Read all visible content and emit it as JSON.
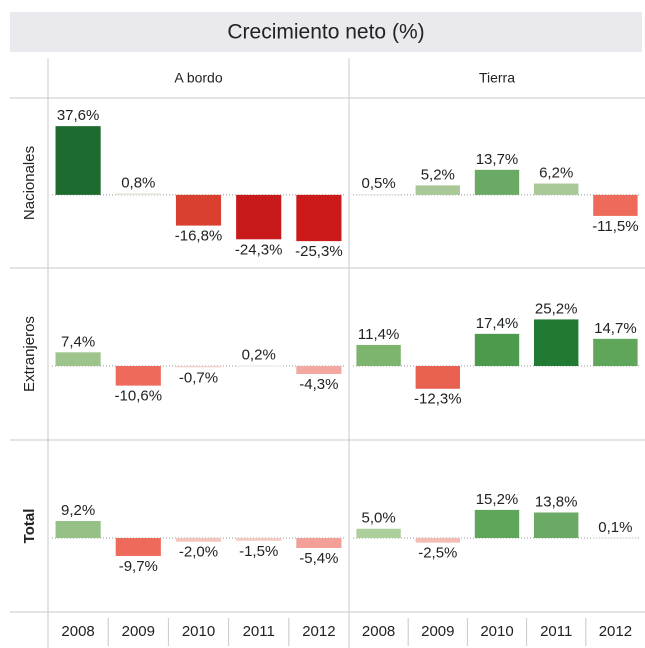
{
  "chart_data": {
    "type": "bar",
    "title": "Crecimiento neto (%)",
    "column_labels": [
      "A bordo",
      "Tierra"
    ],
    "row_labels": [
      "Nacionales",
      "Extranjeros",
      "Total"
    ],
    "categories": [
      "2008",
      "2009",
      "2010",
      "2011",
      "2012"
    ],
    "ylim": [
      -40,
      53
    ],
    "panels": [
      [
        {
          "values": [
            37.6,
            0.8,
            -16.8,
            -24.3,
            -25.3
          ],
          "value_labels": [
            "37,6%",
            "0,8%",
            "-16,8%",
            "-24,3%",
            "-25,3%"
          ],
          "colors": [
            "#1e6b30",
            "#dfe8da",
            "#d94030",
            "#c8191b",
            "#cc1a1a"
          ]
        },
        {
          "values": [
            0.5,
            5.2,
            13.7,
            6.2,
            -11.5
          ],
          "value_labels": [
            "0,5%",
            "5,2%",
            "13,7%",
            "6,2%",
            "-11,5%"
          ],
          "colors": [
            "#e4ebe0",
            "#a8c898",
            "#6aaa64",
            "#a8c898",
            "#ee6b5b"
          ]
        }
      ],
      [
        {
          "values": [
            7.4,
            -10.6,
            -0.7,
            0.2,
            -4.3
          ],
          "value_labels": [
            "7,4%",
            "-10,6%",
            "-0,7%",
            "0,2%",
            "-4,3%"
          ],
          "colors": [
            "#9dc48d",
            "#ee6b5b",
            "#f6d0c8",
            "#e6ece2",
            "#f2a8a0"
          ]
        },
        {
          "values": [
            11.4,
            -12.3,
            17.4,
            25.2,
            14.7
          ],
          "value_labels": [
            "11,4%",
            "-12,3%",
            "17,4%",
            "25,2%",
            "14,7%"
          ],
          "colors": [
            "#7db56e",
            "#e8604f",
            "#4d9a4d",
            "#217a33",
            "#5fa55a"
          ]
        }
      ],
      [
        {
          "values": [
            9.2,
            -9.7,
            -2.0,
            -1.5,
            -5.4
          ],
          "value_labels": [
            "9,2%",
            "-9,7%",
            "-2,0%",
            "-1,5%",
            "-5,4%"
          ],
          "colors": [
            "#95c086",
            "#ee6b5b",
            "#f5c5bd",
            "#f5cbc4",
            "#f2a098"
          ]
        },
        {
          "values": [
            5.0,
            -2.5,
            15.2,
            13.8,
            0.1
          ],
          "value_labels": [
            "5,0%",
            "-2,5%",
            "15,2%",
            "13,8%",
            "0,1%"
          ],
          "colors": [
            "#acd09c",
            "#f4bcb3",
            "#5fa55a",
            "#6aaa64",
            "#e8eee4"
          ]
        }
      ]
    ]
  }
}
